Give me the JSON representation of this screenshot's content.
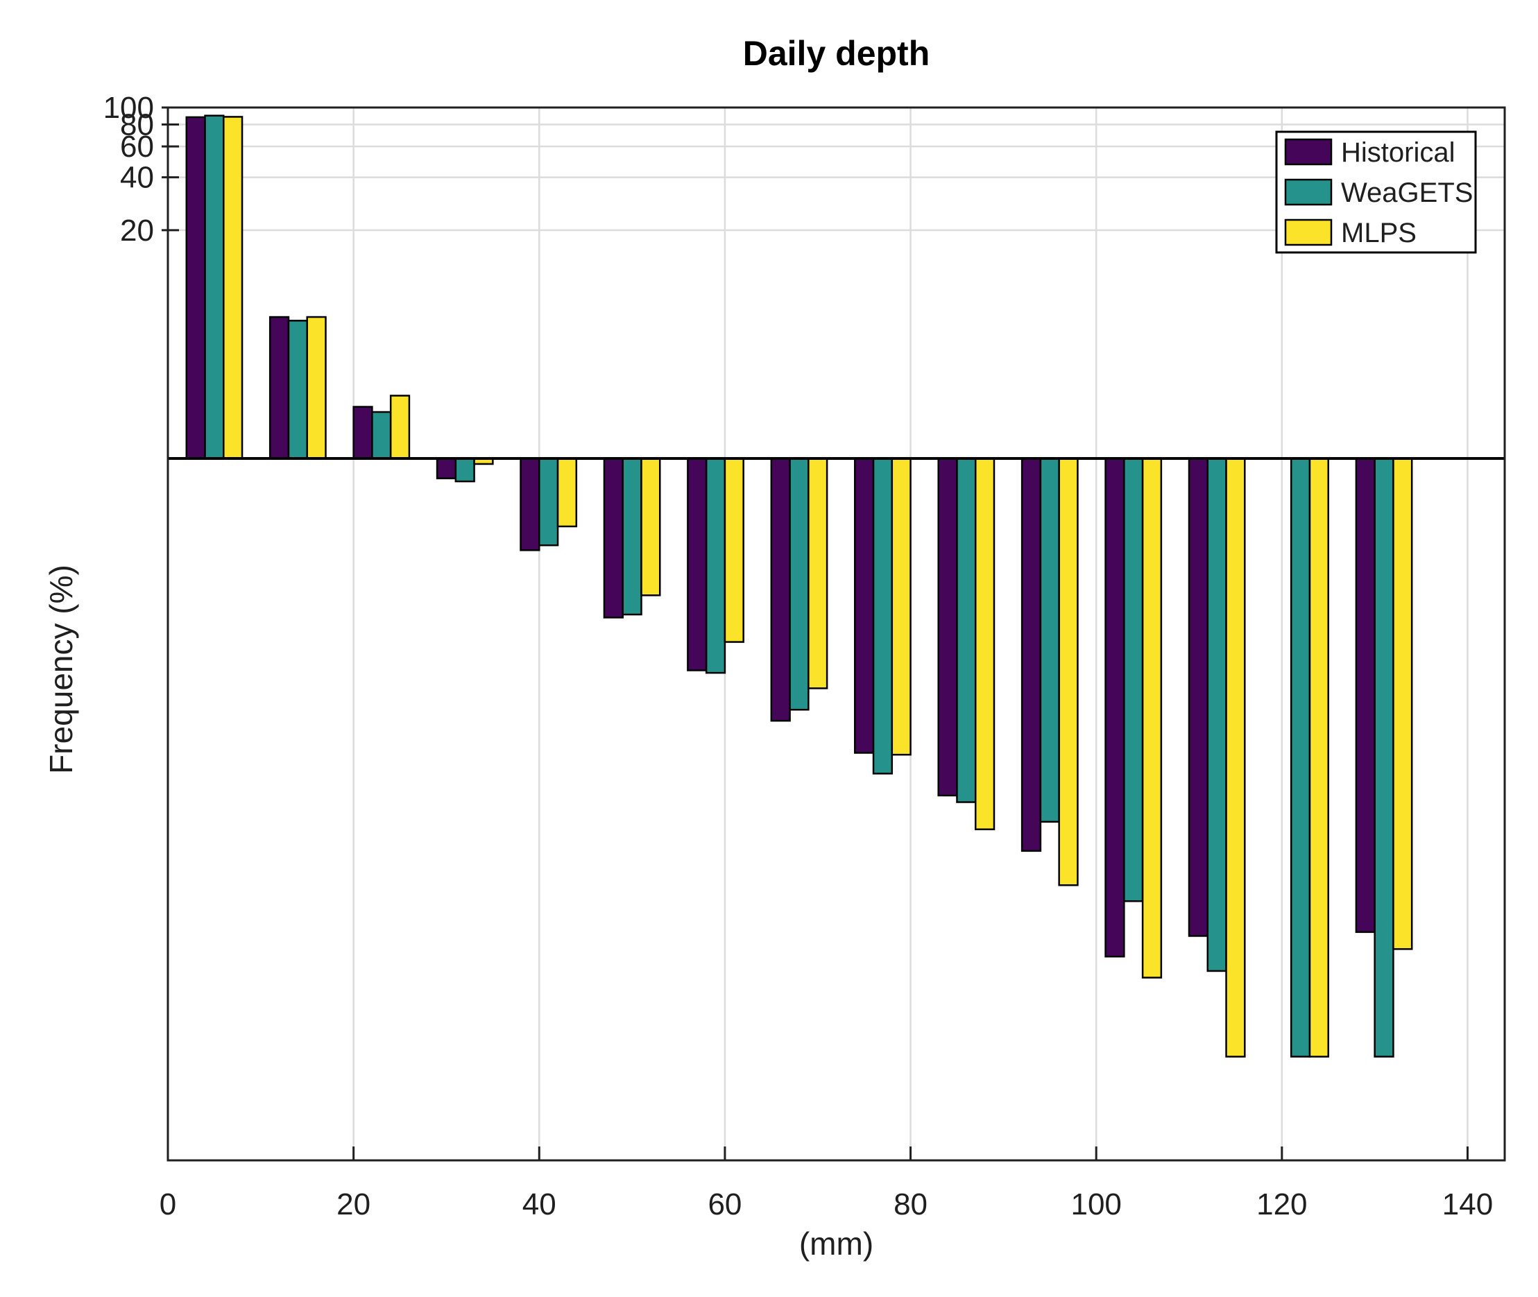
{
  "chart_data": {
    "type": "bar",
    "title": "Daily depth",
    "xlabel": "(mm)",
    "ylabel": "Frequency (%)",
    "yscale": "log",
    "ylim": [
      0.0001,
      100
    ],
    "xlim": [
      0,
      144
    ],
    "bar_baseline": 1,
    "yticks": [
      20,
      40,
      60,
      80,
      100
    ],
    "xticks": [
      0,
      20,
      40,
      60,
      80,
      100,
      120,
      140
    ],
    "grid": true,
    "legend_position": "northeast",
    "bin_centers": [
      5,
      14,
      23,
      32,
      41,
      50,
      59,
      68,
      77,
      86,
      95,
      104,
      113,
      122,
      131
    ],
    "bar_width_mm": 2,
    "series": [
      {
        "name": "Historical",
        "color": "#450559",
        "values": [
          88.1,
          6.4,
          1.97,
          0.77,
          0.3,
          0.124,
          0.062,
          0.032,
          0.021,
          0.012,
          0.0058,
          0.00145,
          0.0019,
          null,
          0.002
        ]
      },
      {
        "name": "WeaGETS",
        "color": "#25928b",
        "values": [
          89.9,
          6.1,
          1.84,
          0.74,
          0.32,
          0.129,
          0.06,
          0.037,
          0.016,
          0.011,
          0.0085,
          0.003,
          0.0012,
          0.00039,
          0.00039
        ]
      },
      {
        "name": "MLPS",
        "color": "#fbe32a",
        "values": [
          88.5,
          6.4,
          2.28,
          0.93,
          0.41,
          0.166,
          0.09,
          0.049,
          0.0205,
          0.0077,
          0.0037,
          0.0011,
          0.00039,
          0.00039,
          0.0016
        ]
      }
    ],
    "colors": {
      "grid": "#dcdcdc",
      "axis": "#202020",
      "bar_edge": "#000000",
      "background": "#ffffff"
    }
  }
}
